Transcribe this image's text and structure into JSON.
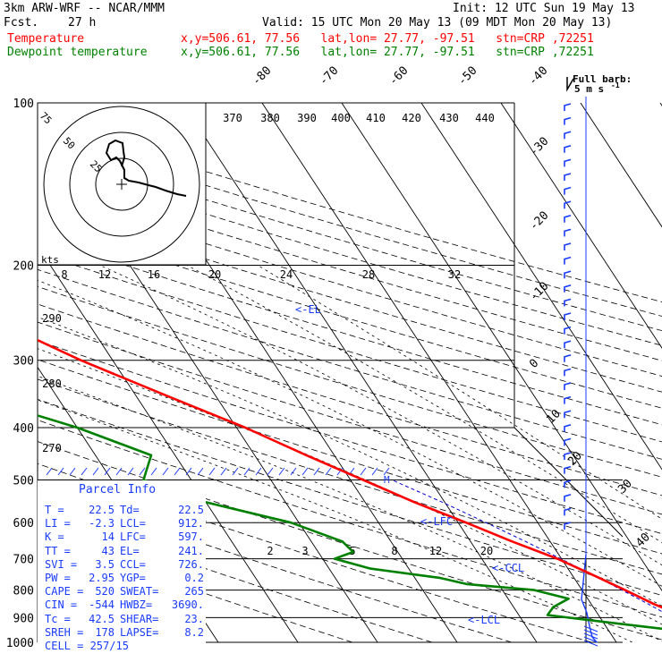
{
  "header": {
    "model": "3km ARW-WRF -- NCAR/MMM",
    "init": "Init: 12 UTC Sun 19 May 13",
    "fcst_label": "Fcst.",
    "fcst_value": "27 h",
    "valid": "Valid: 15 UTC Mon 20 May 13 (09 MDT Mon 20 May 13)",
    "temp_label": "Temperature",
    "temp_info": "x,y=506.61, 77.56   lat,lon= 27.77, -97.51   stn=CRP ,72251",
    "dew_label": "Dewpoint temperature",
    "dew_info": "x,y=506.61, 77.56   lat,lon= 27.77, -97.51   stn=CRP ,72251"
  },
  "wind_barb_legend": {
    "line1": "Full barb:",
    "line2": "5 m s",
    "exponent": "-1"
  },
  "hodograph": {
    "units": "kts",
    "ring_labels": [
      "25",
      "50",
      "75"
    ]
  },
  "parcel_info": {
    "title": "Parcel Info",
    "rows": [
      {
        "l1": "T",
        "v1": "22.5",
        "l2": "Td",
        "v2": "22.5"
      },
      {
        "l1": "LI",
        "v1": "-2.3",
        "l2": "LCL",
        "v2": "912."
      },
      {
        "l1": "K",
        "v1": "14",
        "l2": "LFC",
        "v2": "597."
      },
      {
        "l1": "TT",
        "v1": "43",
        "l2": "EL",
        "v2": "241."
      },
      {
        "l1": "SVI",
        "v1": "3.5",
        "l2": "CCL",
        "v2": "726."
      },
      {
        "l1": "PW",
        "v1": "2.95",
        "l2": "YGP",
        "v2": "0.2"
      },
      {
        "l1": "CAPE",
        "v1": "520",
        "l2": "SWEAT",
        "v2": "265"
      },
      {
        "l1": "CIN",
        "v1": "-544",
        "l2": "HWBZ",
        "v2": "3690."
      },
      {
        "l1": "Tc",
        "v1": "42.5",
        "l2": "SHEAR",
        "v2": "23."
      },
      {
        "l1": "SREH",
        "v1": "178",
        "l2": "LAPSE",
        "v2": "8.2"
      },
      {
        "l1": "CELL",
        "v1": "257/15",
        "l2": "",
        "v2": ""
      }
    ]
  },
  "level_labels": {
    "el": "<-EL",
    "lfc": "<-LFC",
    "ccl": "<-CCL",
    "lcl": "<-LCL"
  },
  "chart_data": {
    "type": "line",
    "title": "",
    "ylabel": "",
    "y_scale": "log-pressure",
    "y_inverted": true,
    "ylim": [
      1000,
      100
    ],
    "pressure_ticks": [
      100,
      200,
      300,
      400,
      500,
      600,
      700,
      800,
      900,
      1000
    ],
    "isotherm_labels": [
      -80,
      -70,
      -60,
      -50,
      -40,
      -30,
      -20,
      -10,
      0,
      10,
      20,
      30,
      40
    ],
    "theta_labels": [
      "370",
      "380",
      "390",
      "400",
      "410",
      "420",
      "430",
      "440"
    ],
    "theta_low_labels": [
      "290",
      "280",
      "270"
    ],
    "mixing_ratio_top_labels": [
      "8",
      "12",
      "16",
      "20",
      "24",
      "28",
      "32"
    ],
    "mixing_ratio_low_labels": [
      "2",
      "3",
      "5",
      "8",
      "12",
      "20"
    ],
    "series": [
      {
        "name": "Temperature",
        "color": "#ff0000",
        "pressure": [
          1000,
          960,
          940,
          920,
          900,
          850,
          800,
          750,
          700,
          650,
          600,
          550,
          500,
          450,
          400,
          350,
          300,
          250,
          200,
          175,
          150,
          125,
          110,
          100
        ],
        "temperature": [
          25.8,
          22.9,
          22.5,
          21.8,
          20.9,
          17.9,
          15.4,
          12.6,
          9.5,
          5.2,
          1.0,
          -3.8,
          -8.4,
          -13.5,
          -18.9,
          -26.0,
          -34.0,
          -42.0,
          -52.0,
          -59.0,
          -64.0,
          -69.0,
          -68.0,
          -66.0
        ]
      },
      {
        "name": "Dewpoint temperature",
        "color": "#008000",
        "pressure": [
          1000,
          970,
          950,
          920,
          890,
          860,
          830,
          800,
          780,
          760,
          730,
          700,
          680,
          650,
          600,
          550,
          500,
          450,
          400,
          370,
          360,
          320,
          300,
          250,
          200,
          150,
          120,
          100
        ],
        "temperature": [
          24.5,
          22.5,
          18.5,
          11.0,
          3.6,
          5.0,
          7.6,
          4.0,
          -4.0,
          -6.8,
          -14.8,
          -18.5,
          -15.6,
          -16.1,
          -21.0,
          -30.0,
          -36.0,
          -33.0,
          -40.0,
          -46.0,
          -50.0,
          -56.0,
          -60.0,
          -67.0,
          -73.0,
          -80.0,
          -88.0,
          -95.0
        ]
      }
    ],
    "parcel_ascent": {
      "color": "#0000cc",
      "pressure": [
        1000,
        912,
        900,
        850,
        800,
        750,
        700,
        650,
        600,
        550,
        500
      ],
      "temperature": [
        22.5,
        19.5,
        19.1,
        17.2,
        15.0,
        12.6,
        9.9,
        6.9,
        3.5,
        -0.3,
        -4.8
      ]
    }
  }
}
